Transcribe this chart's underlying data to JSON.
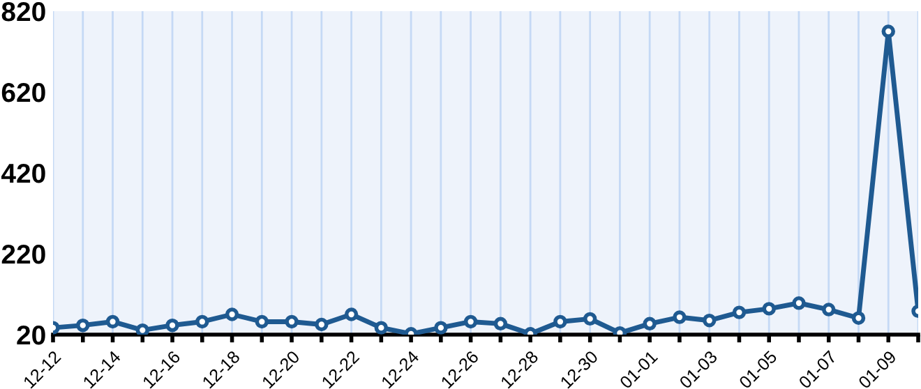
{
  "chart_data": {
    "type": "line",
    "categories": [
      "12-12",
      null,
      "12-14",
      null,
      "12-16",
      null,
      "12-18",
      null,
      "12-20",
      null,
      "12-22",
      null,
      "12-24",
      null,
      "12-26",
      null,
      "12-28",
      null,
      "12-30",
      null,
      "01-01",
      null,
      "01-03",
      null,
      "01-05",
      null,
      "01-07",
      null,
      "01-09",
      null
    ],
    "series": [
      {
        "color": "#1f5a91",
        "values": [
          37,
          43,
          52,
          31,
          43,
          52,
          70,
          52,
          52,
          45,
          70,
          37,
          22,
          37,
          52,
          47,
          22,
          52,
          59,
          24,
          47,
          63,
          55,
          75,
          84,
          98,
          82,
          61,
          770,
          78
        ]
      }
    ],
    "ylim": [
      20,
      820
    ],
    "yticks": [
      20,
      220,
      420,
      620,
      820
    ],
    "grid": "x",
    "marker": "circle",
    "line_style": "solid"
  }
}
